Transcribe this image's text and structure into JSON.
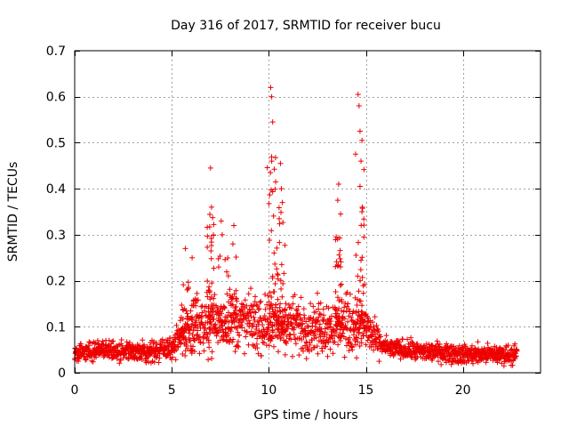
{
  "chart_data": {
    "type": "scatter",
    "title": "Day 316 of 2017, SRMTID for receiver bucu",
    "xlabel": "GPS time / hours",
    "ylabel": "SRMTID / TECUs",
    "xlim": [
      0,
      24
    ],
    "ylim": [
      0,
      0.7
    ],
    "x_ticks": [
      0,
      5,
      10,
      15,
      20
    ],
    "x_tick_labels": [
      "0",
      "5",
      "10",
      "15",
      "20"
    ],
    "y_ticks": [
      0,
      0.1,
      0.2,
      0.3,
      0.4,
      0.5,
      0.6,
      0.7
    ],
    "y_tick_labels": [
      "0",
      "0.1",
      "0.2",
      "0.3",
      "0.4",
      "0.5",
      "0.6",
      "0.7"
    ],
    "grid": true,
    "marker": "+",
    "colors": {
      "series": "#ee0000",
      "grid": "#a0a0a0",
      "axis": "#000000"
    },
    "series": [
      {
        "name": "SRMTID",
        "background_profile": {
          "description": "median envelope of the dense point cloud, hours vs TECU",
          "x": [
            0,
            1,
            2,
            3,
            4,
            5,
            5.5,
            6,
            7,
            8,
            9,
            10,
            11,
            12,
            13,
            14,
            15,
            15.5,
            16,
            17,
            18,
            19,
            20,
            21,
            22,
            22.8
          ],
          "median": [
            0.045,
            0.048,
            0.047,
            0.045,
            0.045,
            0.055,
            0.075,
            0.1,
            0.11,
            0.11,
            0.11,
            0.1,
            0.105,
            0.1,
            0.1,
            0.105,
            0.1,
            0.07,
            0.055,
            0.05,
            0.045,
            0.045,
            0.04,
            0.04,
            0.04,
            0.04
          ],
          "spread": [
            0.015,
            0.015,
            0.015,
            0.015,
            0.015,
            0.02,
            0.03,
            0.04,
            0.045,
            0.045,
            0.045,
            0.045,
            0.045,
            0.04,
            0.04,
            0.045,
            0.04,
            0.025,
            0.015,
            0.015,
            0.015,
            0.015,
            0.015,
            0.015,
            0.015,
            0.015
          ]
        },
        "peaks": [
          {
            "x": 5.7,
            "y": 0.27
          },
          {
            "x": 6.05,
            "y": 0.25
          },
          {
            "x": 7.0,
            "y": 0.445
          },
          {
            "x": 7.05,
            "y": 0.36
          },
          {
            "x": 7.55,
            "y": 0.33
          },
          {
            "x": 7.6,
            "y": 0.3
          },
          {
            "x": 8.2,
            "y": 0.32
          },
          {
            "x": 8.15,
            "y": 0.28
          },
          {
            "x": 10.1,
            "y": 0.62
          },
          {
            "x": 10.15,
            "y": 0.6
          },
          {
            "x": 10.2,
            "y": 0.545
          },
          {
            "x": 10.15,
            "y": 0.46
          },
          {
            "x": 10.6,
            "y": 0.455
          },
          {
            "x": 10.65,
            "y": 0.4
          },
          {
            "x": 10.7,
            "y": 0.37
          },
          {
            "x": 13.6,
            "y": 0.41
          },
          {
            "x": 13.55,
            "y": 0.375
          },
          {
            "x": 13.7,
            "y": 0.345
          },
          {
            "x": 14.6,
            "y": 0.605
          },
          {
            "x": 14.65,
            "y": 0.58
          },
          {
            "x": 14.7,
            "y": 0.525
          },
          {
            "x": 14.8,
            "y": 0.505
          },
          {
            "x": 14.75,
            "y": 0.46
          },
          {
            "x": 14.7,
            "y": 0.405
          },
          {
            "x": 14.8,
            "y": 0.35
          },
          {
            "x": 14.9,
            "y": 0.295
          }
        ],
        "peak_clusters": [
          {
            "x_range": [
              5.4,
              6.3
            ],
            "y_max": 0.27
          },
          {
            "x_range": [
              6.8,
              7.2
            ],
            "y_max": 0.45
          },
          {
            "x_range": [
              7.4,
              8.4
            ],
            "y_max": 0.33
          },
          {
            "x_range": [
              9.9,
              10.4
            ],
            "y_max": 0.62
          },
          {
            "x_range": [
              10.4,
              10.9
            ],
            "y_max": 0.46
          },
          {
            "x_range": [
              13.4,
              13.8
            ],
            "y_max": 0.41
          },
          {
            "x_range": [
              14.4,
              15.0
            ],
            "y_max": 0.61
          }
        ]
      }
    ]
  }
}
